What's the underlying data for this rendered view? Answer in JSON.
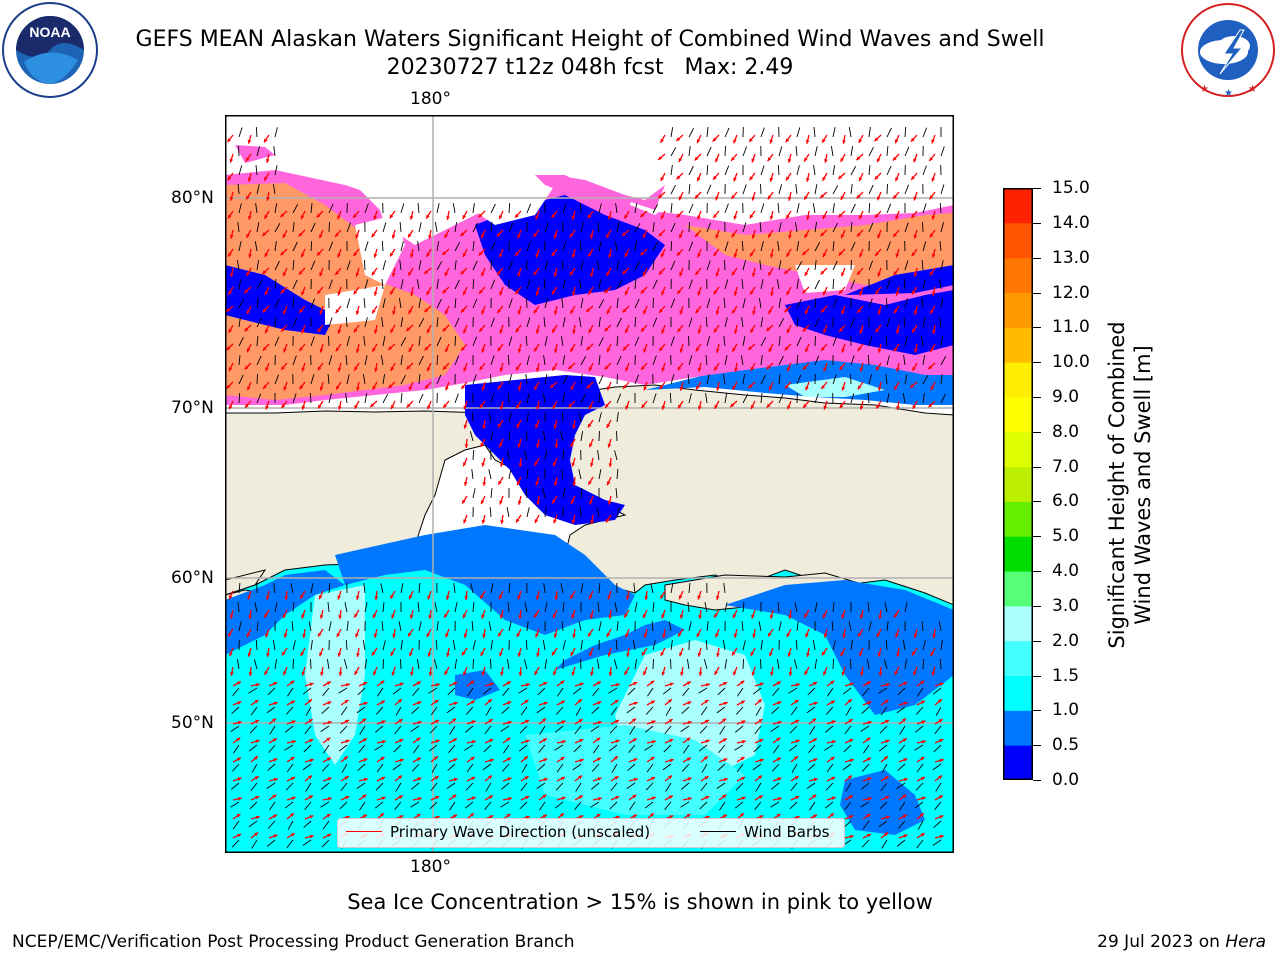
{
  "title": {
    "line1": "GEFS MEAN Alaskan Waters Significant Height of Combined Wind Waves and Swell",
    "line2": "20230727 t12z 048h fcst   Max: 2.49"
  },
  "logos": {
    "noaa": {
      "icon": "noaa-logo",
      "text": "NOAA",
      "ring_text": "NATIONAL OCEANIC AND ATMOSPHERIC ADMINISTRATION · U.S. DEPARTMENT OF COMMERCE"
    },
    "nws": {
      "icon": "nws-logo",
      "ring_text": "NATIONAL WEATHER SERVICE"
    }
  },
  "map": {
    "lon_label_top": "180°",
    "lon_label_bottom": "180°",
    "lat_labels": [
      "80°N",
      "70°N",
      "60°N",
      "50°N"
    ],
    "colors": {
      "land": "#efecdc",
      "gridline": "#b0b0b0",
      "wave_arrow": "#ff0000",
      "wind_barb": "#000000"
    }
  },
  "colorbar": {
    "label_line1": "Significant Height of Combined",
    "label_line2": "Wind Waves and Swell [m]",
    "ticks": [
      "15.0",
      "14.0",
      "13.0",
      "12.0",
      "11.0",
      "10.0",
      "9.0",
      "8.0",
      "7.0",
      "6.0",
      "5.0",
      "4.0",
      "3.0",
      "2.0",
      "1.5",
      "1.0",
      "0.5",
      "0.0"
    ],
    "bins": [
      {
        "range": "0.0-0.5",
        "color": "#0000ff"
      },
      {
        "range": "0.5-1.0",
        "color": "#0077ff"
      },
      {
        "range": "1.0-1.5",
        "color": "#00ffff"
      },
      {
        "range": "1.5-2.0",
        "color": "#44ffff"
      },
      {
        "range": "2.0-3.0",
        "color": "#aaffff"
      },
      {
        "range": "3.0-4.0",
        "color": "#55ff77"
      },
      {
        "range": "4.0-5.0",
        "color": "#00dd00"
      },
      {
        "range": "5.0-6.0",
        "color": "#66ee00"
      },
      {
        "range": "6.0-7.0",
        "color": "#bbee00"
      },
      {
        "range": "7.0-8.0",
        "color": "#ddff00"
      },
      {
        "range": "8.0-9.0",
        "color": "#ffff00"
      },
      {
        "range": "9.0-10.0",
        "color": "#ffee00"
      },
      {
        "range": "10.0-11.0",
        "color": "#ffbb00"
      },
      {
        "range": "11.0-12.0",
        "color": "#ff9900"
      },
      {
        "range": "12.0-13.0",
        "color": "#ff7700"
      },
      {
        "range": "13.0-14.0",
        "color": "#ff5500"
      },
      {
        "range": "14.0-15.0",
        "color": "#ff2200"
      },
      {
        "range": "15.0",
        "color": "#ff0000"
      }
    ]
  },
  "legend": {
    "wave_label": "Primary Wave Direction (unscaled)",
    "wave_color": "#ff0000",
    "wind_label": "Wind Barbs",
    "wind_color": "#000000"
  },
  "note": "Sea Ice Concentration > 15% is shown in pink to yellow",
  "footer": {
    "left": "NCEP/EMC/Verification Post Processing Product Generation Branch",
    "date": "29 Jul 2023 on ",
    "host": "Hera"
  }
}
